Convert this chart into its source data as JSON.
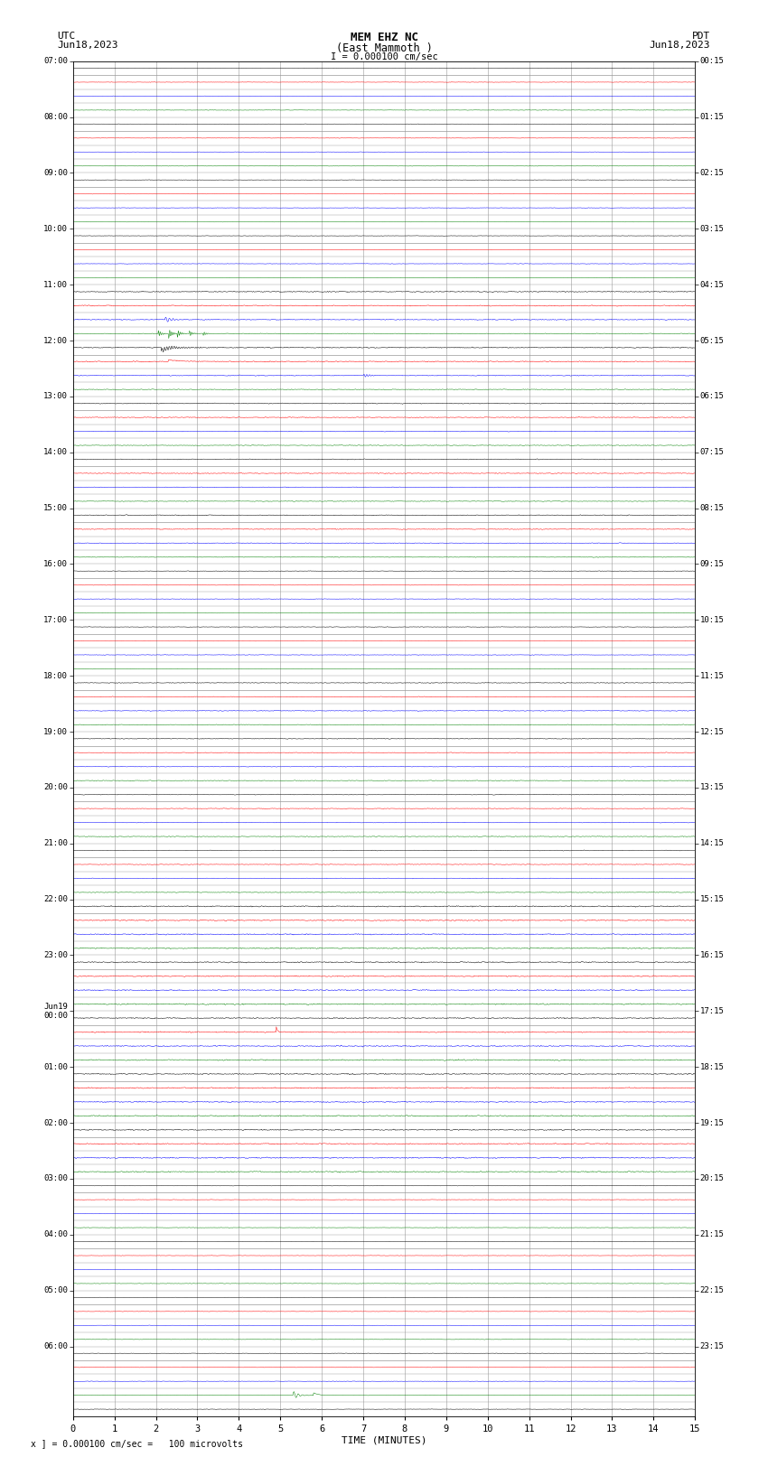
{
  "title_line1": "MEM EHZ NC",
  "title_line2": "(East Mammoth )",
  "scale_label": "I = 0.000100 cm/sec",
  "left_label_top": "UTC",
  "left_label_date": "Jun18,2023",
  "right_label_top": "PDT",
  "right_label_date": "Jun18,2023",
  "xlabel": "TIME (MINUTES)",
  "footer": "x ] = 0.000100 cm/sec =   100 microvolts",
  "xmin": 0,
  "xmax": 15,
  "fig_width": 8.5,
  "fig_height": 16.13,
  "dpi": 100,
  "background_color": "#ffffff",
  "grid_color": "#999999",
  "trace_colors": [
    "black",
    "red",
    "blue",
    "green"
  ],
  "utc_label_list": [
    "07:00",
    "08:00",
    "09:00",
    "10:00",
    "11:00",
    "12:00",
    "13:00",
    "14:00",
    "15:00",
    "16:00",
    "17:00",
    "18:00",
    "19:00",
    "20:00",
    "21:00",
    "22:00",
    "23:00",
    "Jun19\n00:00",
    "01:00",
    "02:00",
    "03:00",
    "04:00",
    "05:00",
    "06:00"
  ],
  "pdt_label_list": [
    "00:15",
    "01:15",
    "02:15",
    "03:15",
    "04:15",
    "05:15",
    "06:15",
    "07:15",
    "08:15",
    "09:15",
    "10:15",
    "11:15",
    "12:15",
    "13:15",
    "14:15",
    "15:15",
    "16:15",
    "17:15",
    "18:15",
    "19:15",
    "20:15",
    "21:15",
    "22:15",
    "23:15"
  ],
  "num_rows": 97,
  "rows_per_hour": 4,
  "seed": 42
}
